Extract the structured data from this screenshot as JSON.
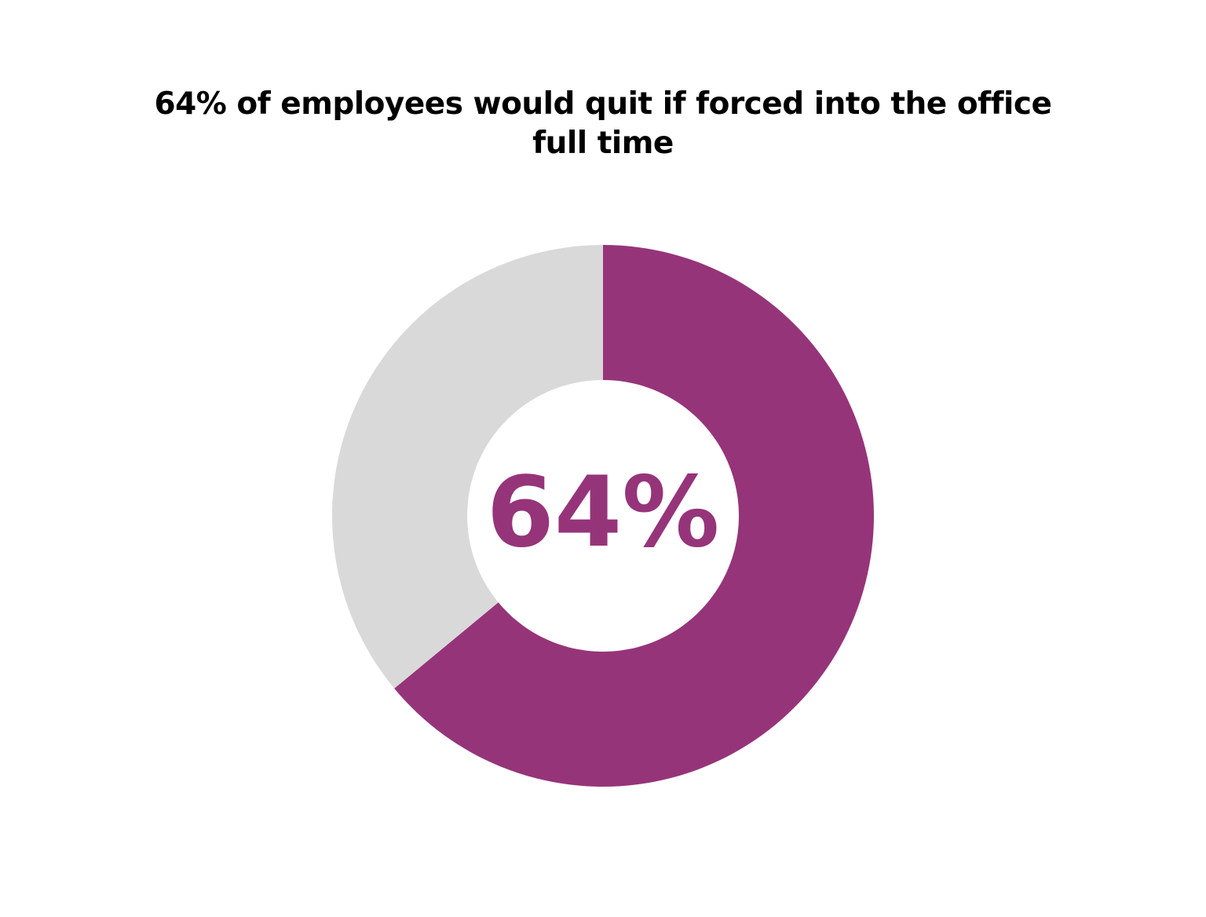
{
  "chart_data": {
    "type": "donut",
    "title": "64% of employees would quit if forced into the office full time",
    "values": [
      64,
      36
    ],
    "value_labels": [
      "64%",
      null
    ],
    "colors": [
      "#96347a",
      "#d9d9d9"
    ]
  }
}
